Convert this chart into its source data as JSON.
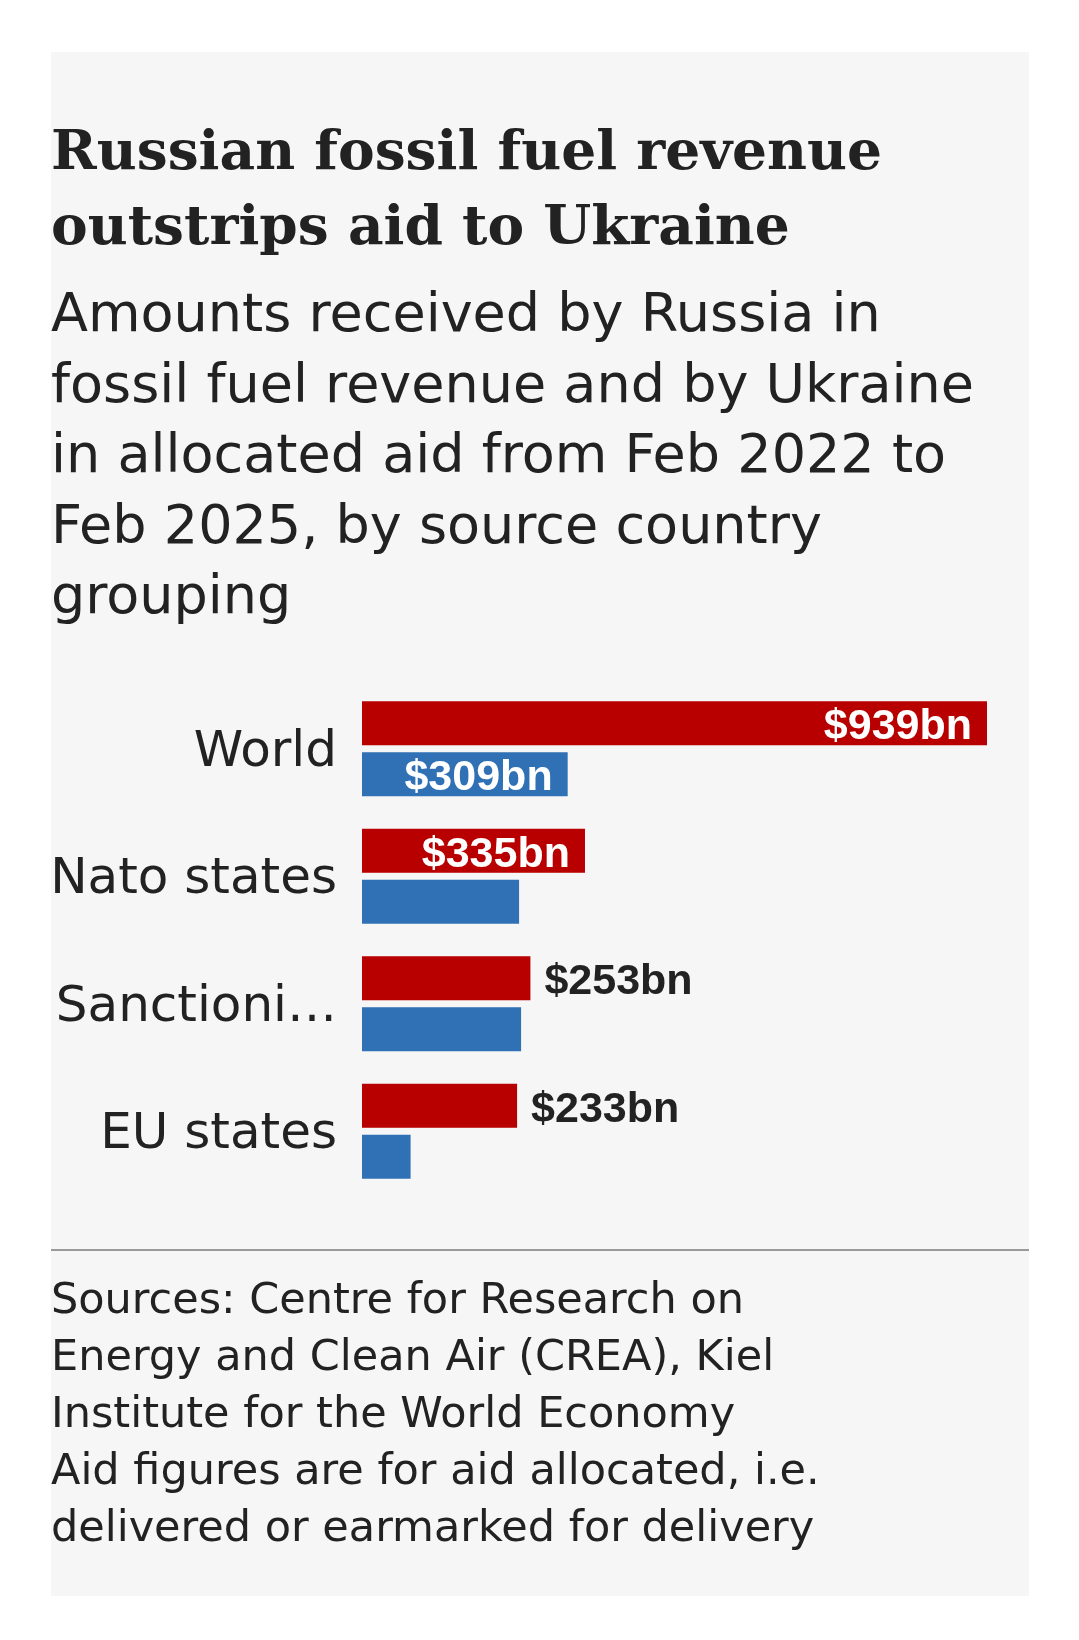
{
  "chart_data": {
    "type": "bar",
    "orientation": "horizontal",
    "title": "Russian fossil fuel revenue outstrips aid to Ukraine",
    "subtitle": "Amounts received by Russia in fossil fuel revenue and by Ukraine in allocated aid from Feb 2022 to Feb 2025, by source country grouping",
    "categories": [
      "World",
      "Nato states",
      "Sanctioni…",
      "EU states"
    ],
    "series": [
      {
        "color": "#b80000",
        "values": [
          939,
          335,
          253,
          233
        ],
        "value_labels": [
          "$939bn",
          "$335bn",
          "$253bn",
          "$233bn"
        ]
      },
      {
        "color": "#3071b5",
        "values": [
          309,
          236,
          239,
          73
        ],
        "value_labels": [
          "$309bn",
          null,
          null,
          null
        ]
      }
    ],
    "annotations": [
      "Sources: Centre for Research on Energy and Clean Air (CREA), Kiel Institute for the World Economy",
      "Aid figures are for aid allocated, i.e. delivered or earmarked for delivery"
    ]
  }
}
